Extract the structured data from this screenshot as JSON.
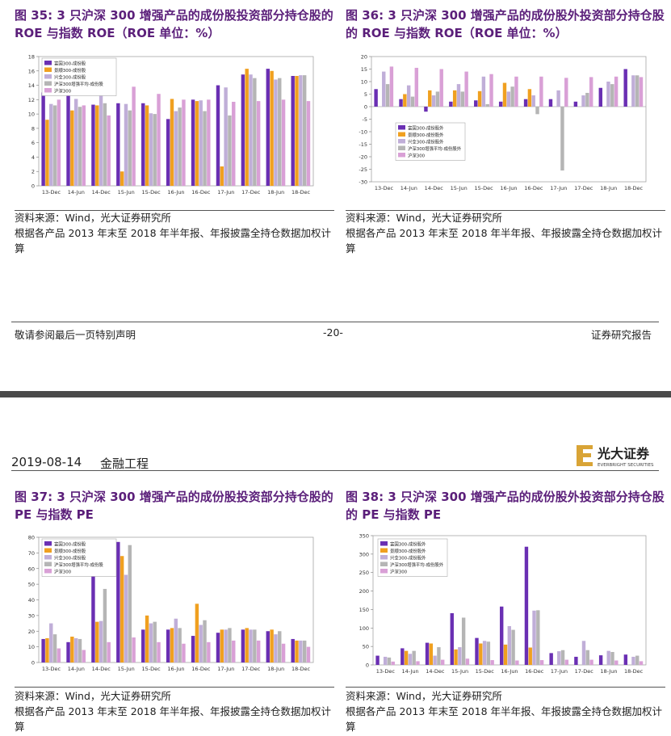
{
  "page": {
    "footer_left": "敬请参阅最后一页特别声明",
    "footer_center": "-20-",
    "footer_right": "证券研究报告",
    "header_date": "2019-08-14",
    "header_section": "金融工程",
    "logo_text": "光大证券",
    "logo_sub": "EVERBRIGHT SECURITIES",
    "colors": {
      "title": "#5b1f7a",
      "band": "#4a4a4a"
    }
  },
  "figures": [
    {
      "title": "图 35: 3 只沪深 300 增强产品的成份股投资部分持仓股的 ROE 与指数 ROE（ROE 单位：%）",
      "source_line1": "资料来源：Wind，光大证券研究所",
      "source_line2": "根据各产品 2013 年末至 2018 年半年报、年报披露全持仓数据加权计算"
    },
    {
      "title": "图 36: 3 只沪深 300 增强产品的成份股外投资部分持仓股的 ROE 与指数 ROE（ROE 单位：%）",
      "source_line1": "资料来源：Wind，光大证券研究所",
      "source_line2": "根据各产品 2013 年末至 2018 年半年报、年报披露全持仓数据加权计算"
    },
    {
      "title": "图 37: 3 只沪深 300 增强产品的成份股投资部分持仓股的 PE 与指数 PE",
      "source_line1": "资料来源：Wind，光大证券研究所",
      "source_line2": "根据各产品 2013 年末至 2018 年半年报、年报披露全持仓数据加权计算"
    },
    {
      "title": "图 38: 3 只沪深 300 增强产品的成份股外投资部分持仓股的 PE 与指数 PE",
      "source_line1": "资料来源：Wind，光大证券研究所",
      "source_line2": "根据各产品 2013 年末至 2018 年半年报、年报披露全持仓数据加权计算"
    }
  ],
  "chart_data": [
    {
      "type": "bar",
      "categories": [
        "13-Dec",
        "14-Jun",
        "14-Dec",
        "15-Jun",
        "15-Dec",
        "16-Jun",
        "16-Dec",
        "17-Jun",
        "17-Dec",
        "18-Jun",
        "18-Dec"
      ],
      "ylim": [
        0,
        18
      ],
      "yticks": [
        0,
        2,
        4,
        6,
        8,
        10,
        12,
        14,
        16,
        18
      ],
      "legend_position": "top-left",
      "series": [
        {
          "name": "富国300-成份股",
          "color": "#6a2fb3",
          "values": [
            13.0,
            14.6,
            11.3,
            11.5,
            11.5,
            9.3,
            12.0,
            14.0,
            15.5,
            16.3,
            15.3
          ]
        },
        {
          "name": "景顺300-成份股",
          "color": "#f0a020",
          "values": [
            9.2,
            10.5,
            11.2,
            2.0,
            11.2,
            12.1,
            11.8,
            2.7,
            16.3,
            16.0,
            15.3
          ]
        },
        {
          "name": "兴全300-成份股",
          "color": "#c0aed8",
          "values": [
            11.4,
            12.1,
            12.8,
            11.4,
            10.1,
            10.4,
            11.9,
            13.7,
            15.5,
            14.8,
            15.4
          ]
        },
        {
          "name": "沪深300增强平均-成份股",
          "color": "#b5b5b5",
          "values": [
            11.2,
            11.0,
            11.5,
            10.5,
            10.0,
            10.9,
            10.4,
            9.8,
            15.0,
            15.0,
            15.4
          ]
        },
        {
          "name": "沪深300",
          "color": "#d9a0d6",
          "values": [
            12.0,
            11.2,
            9.8,
            13.8,
            12.8,
            12.0,
            12.0,
            11.7,
            11.8,
            12.0,
            11.8
          ]
        }
      ]
    },
    {
      "type": "bar",
      "categories": [
        "13-Dec",
        "14-Jun",
        "14-Dec",
        "15-Jun",
        "15-Dec",
        "16-Jun",
        "16-Dec",
        "17-Jun",
        "17-Dec",
        "18-Jun",
        "18-Dec"
      ],
      "ylim": [
        -30,
        20
      ],
      "yticks": [
        -30,
        -25,
        -20,
        -15,
        -10,
        -5,
        0,
        5,
        10,
        15,
        20
      ],
      "legend_position": "center-left",
      "series": [
        {
          "name": "富国300-成份股外",
          "color": "#6a2fb3",
          "values": [
            7.0,
            3.0,
            -2.0,
            2.0,
            2.5,
            2.0,
            3.0,
            3.0,
            2.0,
            7.5,
            15.0
          ]
        },
        {
          "name": "景顺300-成份股外",
          "color": "#f0a020",
          "values": [
            0,
            5.0,
            6.5,
            6.5,
            6.2,
            9.5,
            7.0,
            0,
            0,
            0,
            0
          ]
        },
        {
          "name": "兴全300-成份股外",
          "color": "#c0aed8",
          "values": [
            14.0,
            8.5,
            4.5,
            9.0,
            12.0,
            6.0,
            4.5,
            6.5,
            4.5,
            10.0,
            12.5
          ]
        },
        {
          "name": "沪深300增强平均-成份股外",
          "color": "#b5b5b5",
          "values": [
            9.0,
            4.0,
            6.0,
            6.0,
            1.0,
            8.0,
            -3.0,
            -25.5,
            5.5,
            9.0,
            12.5
          ]
        },
        {
          "name": "沪深300",
          "color": "#d9a0d6",
          "values": [
            16.0,
            15.5,
            15.0,
            14.0,
            13.0,
            12.0,
            12.0,
            11.5,
            11.8,
            12.0,
            11.8
          ]
        }
      ]
    },
    {
      "type": "bar",
      "categories": [
        "13-Dec",
        "14-Jun",
        "14-Dec",
        "15-Jun",
        "15-Dec",
        "16-Jun",
        "16-Dec",
        "17-Jun",
        "17-Dec",
        "18-Jun",
        "18-Dec"
      ],
      "ylim": [
        0,
        80
      ],
      "yticks": [
        0,
        10,
        20,
        30,
        40,
        50,
        60,
        70,
        80
      ],
      "legend_position": "top-left",
      "series": [
        {
          "name": "富国300-成份股",
          "color": "#6a2fb3",
          "values": [
            15.0,
            13.0,
            62.0,
            77.0,
            21.0,
            21.0,
            17.0,
            19.0,
            21.0,
            20.0,
            15.0
          ]
        },
        {
          "name": "景顺300-成份股",
          "color": "#f0a020",
          "values": [
            15.5,
            16.5,
            26.0,
            68.0,
            30.0,
            22.0,
            37.5,
            21.0,
            22.0,
            21.0,
            14.0
          ]
        },
        {
          "name": "兴全300-成份股",
          "color": "#c0aed8",
          "values": [
            25.0,
            15.5,
            26.5,
            56.0,
            25.0,
            28.0,
            24.0,
            21.0,
            21.0,
            18.0,
            14.0
          ]
        },
        {
          "name": "沪深300增强平均-成份股",
          "color": "#b5b5b5",
          "values": [
            18.0,
            15.0,
            47.0,
            75.0,
            26.0,
            22.0,
            27.0,
            22.0,
            21.0,
            20.0,
            14.0
          ]
        },
        {
          "name": "沪深300",
          "color": "#d9a0d6",
          "values": [
            9.0,
            8.0,
            13.0,
            16.0,
            13.0,
            12.0,
            13.0,
            14.0,
            14.0,
            12.0,
            10.0
          ]
        }
      ]
    },
    {
      "type": "bar",
      "categories": [
        "13-Dec",
        "14-Jun",
        "14-Dec",
        "15-Jun",
        "15-Dec",
        "16-Jun",
        "16-Dec",
        "17-Jun",
        "17-Dec",
        "18-Jun",
        "18-Dec"
      ],
      "ylim": [
        0,
        350
      ],
      "yticks": [
        0,
        50,
        100,
        150,
        200,
        250,
        300,
        350
      ],
      "legend_position": "top-left",
      "series": [
        {
          "name": "富国300-成份股外",
          "color": "#6a2fb3",
          "values": [
            25.0,
            45.0,
            60.0,
            140.0,
            73.0,
            158.0,
            320.0,
            32.0,
            22.0,
            26.0,
            28.0
          ]
        },
        {
          "name": "景顺300-成份股外",
          "color": "#f0a020",
          "values": [
            0,
            38.0,
            58.0,
            42.0,
            58.0,
            55.0,
            47.0,
            0,
            0,
            0,
            0
          ]
        },
        {
          "name": "兴全300-成份股外",
          "color": "#c0aed8",
          "values": [
            22.0,
            30.0,
            25.0,
            48.0,
            65.0,
            105.0,
            147.0,
            37.0,
            65.0,
            38.0,
            22.0
          ]
        },
        {
          "name": "沪深300增强平均-成份股外",
          "color": "#b5b5b5",
          "values": [
            20.0,
            38.0,
            48.0,
            128.0,
            63.0,
            95.0,
            148.0,
            40.0,
            40.0,
            35.0,
            25.0
          ]
        },
        {
          "name": "沪深300",
          "color": "#d9a0d6",
          "values": [
            9.0,
            10.0,
            14.0,
            17.0,
            13.0,
            12.0,
            13.0,
            14.0,
            14.0,
            12.0,
            10.0
          ]
        }
      ]
    }
  ]
}
